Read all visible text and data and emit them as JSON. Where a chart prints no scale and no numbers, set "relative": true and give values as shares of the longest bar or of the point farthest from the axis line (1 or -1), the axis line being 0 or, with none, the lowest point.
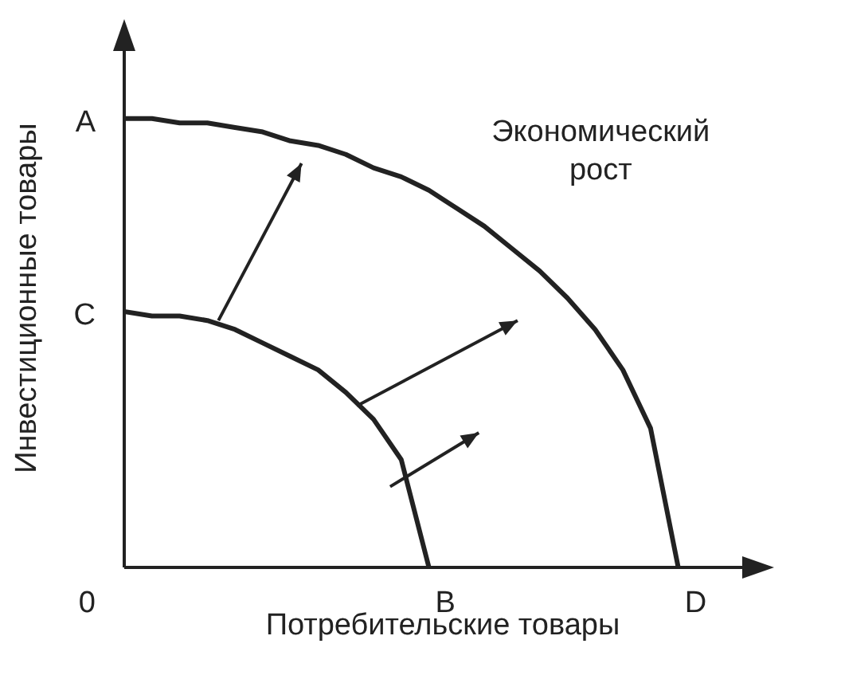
{
  "chart_data": {
    "type": "line",
    "relative": true,
    "xlabel": "Потребительские товары",
    "ylabel": "Инвестиционные товары",
    "legend": false,
    "grid": false,
    "marker": "none",
    "line_style": "solid",
    "categories": [
      null,
      null,
      null,
      null,
      null,
      null,
      null,
      null,
      null,
      null,
      null,
      null,
      null,
      null,
      null,
      null,
      null,
      null,
      null,
      null,
      null
    ],
    "series": [
      {
        "color": "#222222",
        "values": [
          1,
          1,
          0.99,
          0.99,
          0.98,
          0.97,
          0.95,
          0.94,
          0.92,
          0.89,
          0.87,
          0.84,
          0.8,
          0.76,
          0.71,
          0.66,
          0.6,
          0.53,
          0.44,
          0.31,
          0
        ]
      },
      {
        "color": "#222222",
        "values": [
          0.57,
          0.56,
          0.56,
          0.55,
          0.53,
          0.5,
          0.47,
          0.44,
          0.39,
          0.33,
          0.24,
          0,
          null,
          null,
          null,
          null,
          null,
          null,
          null,
          null,
          null
        ]
      }
    ],
    "annotations": [
      "A",
      "C",
      "0",
      "B",
      "D",
      "Экономический рост"
    ]
  }
}
